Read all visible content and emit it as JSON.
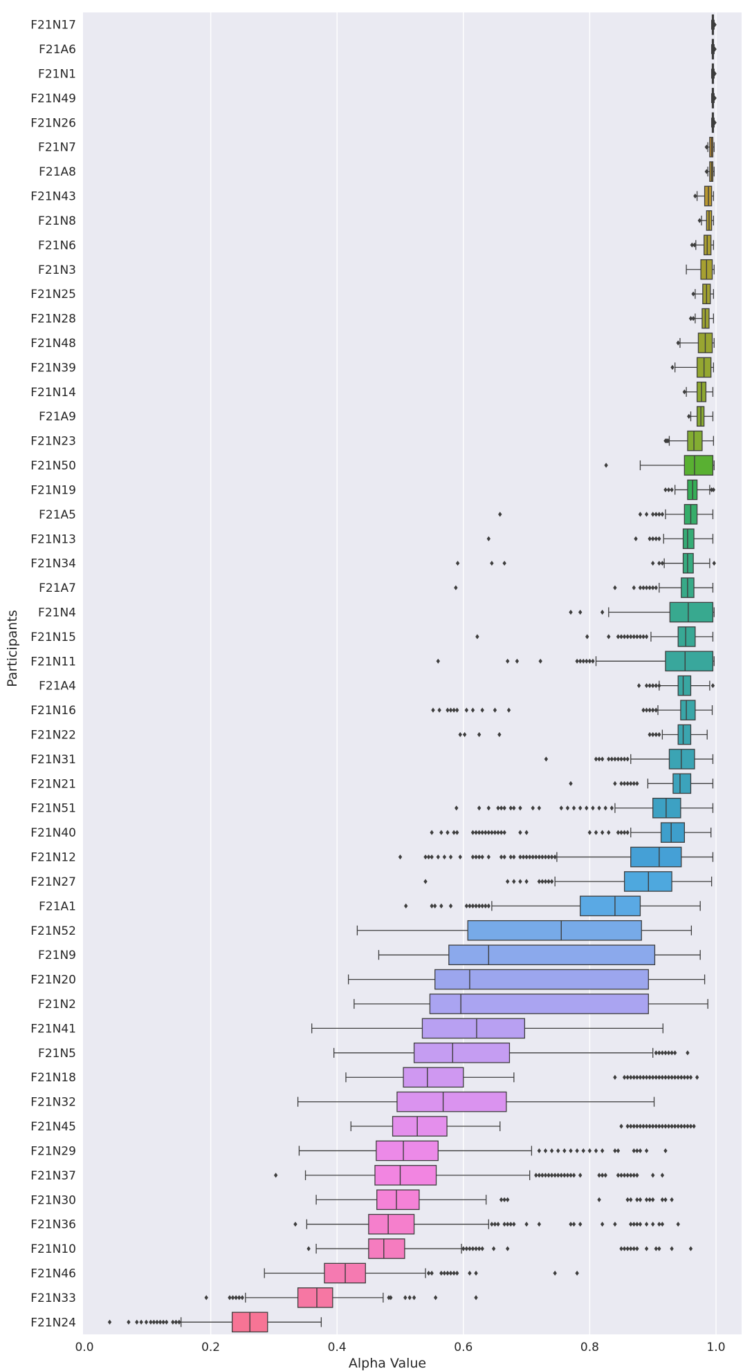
{
  "chart_data": {
    "type": "boxplot",
    "orientation": "horizontal",
    "xlabel": "Alpha Value",
    "ylabel": "Participants",
    "xlim": [
      0.0,
      1.05
    ],
    "xticks": [
      0.0,
      0.2,
      0.4,
      0.6,
      0.8,
      1.0
    ],
    "xtick_labels": [
      "0.0",
      "0.2",
      "0.4",
      "0.6",
      "0.8",
      "1.0"
    ],
    "grid": true,
    "background": "#eaeaf2",
    "colors": {
      "grid": "#ffffff",
      "box_edge": "#3d3d3d",
      "outlier": "#3d3d3d",
      "text": "#262626"
    },
    "series": [
      {
        "name": "F21N17",
        "color": "#f77189",
        "q1": 0.994,
        "median": 0.995,
        "q3": 0.996,
        "lo": 0.993,
        "hi": 0.997,
        "outliers": [
          0.998
        ]
      },
      {
        "name": "F21A6",
        "color": "#f7754f",
        "q1": 0.994,
        "median": 0.995,
        "q3": 0.996,
        "lo": 0.993,
        "hi": 0.997,
        "outliers": [
          0.998
        ]
      },
      {
        "name": "F21N1",
        "color": "#f37932",
        "q1": 0.994,
        "median": 0.995,
        "q3": 0.996,
        "lo": 0.993,
        "hi": 0.997,
        "outliers": [
          0.998
        ]
      },
      {
        "name": "F21N49",
        "color": "#e4832f",
        "q1": 0.994,
        "median": 0.995,
        "q3": 0.996,
        "lo": 0.993,
        "hi": 0.997,
        "outliers": [
          0.998
        ]
      },
      {
        "name": "F21N26",
        "color": "#d58c32",
        "q1": 0.994,
        "median": 0.995,
        "q3": 0.996,
        "lo": 0.993,
        "hi": 0.997,
        "outliers": [
          0.998
        ]
      },
      {
        "name": "F21N7",
        "color": "#c79432",
        "q1": 0.99,
        "median": 0.993,
        "q3": 0.995,
        "lo": 0.987,
        "hi": 0.997,
        "outliers": [
          0.985
        ]
      },
      {
        "name": "F21A8",
        "color": "#ba9832",
        "q1": 0.99,
        "median": 0.993,
        "q3": 0.995,
        "lo": 0.987,
        "hi": 0.997,
        "outliers": [
          0.985
        ]
      },
      {
        "name": "F21N43",
        "color": "#ba9832",
        "q1": 0.982,
        "median": 0.988,
        "q3": 0.993,
        "lo": 0.97,
        "hi": 0.996,
        "outliers": [
          0.967
        ]
      },
      {
        "name": "F21N8",
        "color": "#b29d32",
        "q1": 0.985,
        "median": 0.989,
        "q3": 0.993,
        "lo": 0.977,
        "hi": 0.996,
        "outliers": [
          0.974
        ]
      },
      {
        "name": "F21N6",
        "color": "#ab9f32",
        "q1": 0.981,
        "median": 0.986,
        "q3": 0.992,
        "lo": 0.968,
        "hi": 0.996,
        "outliers": [
          0.962,
          0.966
        ]
      },
      {
        "name": "F21N3",
        "color": "#a7a031",
        "q1": 0.976,
        "median": 0.985,
        "q3": 0.994,
        "lo": 0.953,
        "hi": 0.997,
        "outliers": []
      },
      {
        "name": "F21N25",
        "color": "#a2a231",
        "q1": 0.979,
        "median": 0.985,
        "q3": 0.991,
        "lo": 0.967,
        "hi": 0.996,
        "outliers": [
          0.964
        ]
      },
      {
        "name": "F21N28",
        "color": "#9ea431",
        "q1": 0.978,
        "median": 0.983,
        "q3": 0.989,
        "lo": 0.967,
        "hi": 0.996,
        "outliers": [
          0.96,
          0.964
        ]
      },
      {
        "name": "F21N48",
        "color": "#99a531",
        "q1": 0.972,
        "median": 0.983,
        "q3": 0.994,
        "lo": 0.943,
        "hi": 0.997,
        "outliers": [
          0.94
        ]
      },
      {
        "name": "F21N39",
        "color": "#94a731",
        "q1": 0.97,
        "median": 0.981,
        "q3": 0.992,
        "lo": 0.935,
        "hi": 0.996,
        "outliers": [
          0.931
        ]
      },
      {
        "name": "F21N14",
        "color": "#8fa931",
        "q1": 0.97,
        "median": 0.977,
        "q3": 0.984,
        "lo": 0.953,
        "hi": 0.995,
        "outliers": [
          0.95
        ]
      },
      {
        "name": "F21A9",
        "color": "#89aa31",
        "q1": 0.97,
        "median": 0.976,
        "q3": 0.981,
        "lo": 0.96,
        "hi": 0.995,
        "outliers": [
          0.957
        ]
      },
      {
        "name": "F21N23",
        "color": "#83ac32",
        "q1": 0.955,
        "median": 0.965,
        "q3": 0.978,
        "lo": 0.926,
        "hi": 0.996,
        "outliers": [
          0.92,
          0.922,
          0.924
        ]
      },
      {
        "name": "F21N50",
        "color": "#59b032",
        "q1": 0.95,
        "median": 0.966,
        "q3": 0.995,
        "lo": 0.88,
        "hi": 0.997,
        "outliers": [
          0.826
        ]
      },
      {
        "name": "F21N19",
        "color": "#35ae57",
        "q1": 0.955,
        "median": 0.963,
        "q3": 0.97,
        "lo": 0.935,
        "hi": 0.99,
        "outliers": [
          0.92,
          0.925,
          0.93,
          0.993,
          0.996
        ]
      },
      {
        "name": "F21A5",
        "color": "#36ad6a",
        "q1": 0.95,
        "median": 0.96,
        "q3": 0.97,
        "lo": 0.92,
        "hi": 0.995,
        "outliers": [
          0.658,
          0.88,
          0.89,
          0.9,
          0.905,
          0.91,
          0.915
        ]
      },
      {
        "name": "F21N13",
        "color": "#36ac76",
        "q1": 0.948,
        "median": 0.955,
        "q3": 0.965,
        "lo": 0.917,
        "hi": 0.995,
        "outliers": [
          0.64,
          0.873,
          0.895,
          0.9,
          0.905,
          0.91
        ]
      },
      {
        "name": "F21N34",
        "color": "#37ab80",
        "q1": 0.948,
        "median": 0.955,
        "q3": 0.964,
        "lo": 0.918,
        "hi": 0.99,
        "outliers": [
          0.591,
          0.645,
          0.665,
          0.9,
          0.91,
          0.915,
          0.997
        ]
      },
      {
        "name": "F21A7",
        "color": "#38aa88",
        "q1": 0.945,
        "median": 0.955,
        "q3": 0.965,
        "lo": 0.91,
        "hi": 0.995,
        "outliers": [
          0.588,
          0.84,
          0.87,
          0.88,
          0.885,
          0.89,
          0.895,
          0.9,
          0.905
        ]
      },
      {
        "name": "F21N4",
        "color": "#38a98f",
        "q1": 0.927,
        "median": 0.956,
        "q3": 0.995,
        "lo": 0.83,
        "hi": 0.997,
        "outliers": [
          0.77,
          0.785,
          0.82
        ]
      },
      {
        "name": "F21N15",
        "color": "#38a895",
        "q1": 0.94,
        "median": 0.952,
        "q3": 0.967,
        "lo": 0.897,
        "hi": 0.995,
        "outliers": [
          0.622,
          0.796,
          0.83,
          0.845,
          0.85,
          0.855,
          0.86,
          0.865,
          0.87,
          0.875,
          0.88,
          0.885,
          0.89
        ]
      },
      {
        "name": "F21N11",
        "color": "#39a79c",
        "q1": 0.92,
        "median": 0.951,
        "q3": 0.995,
        "lo": 0.81,
        "hi": 0.997,
        "outliers": [
          0.56,
          0.67,
          0.685,
          0.722,
          0.78,
          0.785,
          0.79,
          0.795,
          0.8,
          0.805
        ]
      },
      {
        "name": "F21A4",
        "color": "#39a7a2",
        "q1": 0.94,
        "median": 0.948,
        "q3": 0.96,
        "lo": 0.91,
        "hi": 0.99,
        "outliers": [
          0.878,
          0.89,
          0.895,
          0.9,
          0.905,
          0.91,
          0.995
        ]
      },
      {
        "name": "F21N16",
        "color": "#3aa6a8",
        "q1": 0.944,
        "median": 0.953,
        "q3": 0.967,
        "lo": 0.908,
        "hi": 0.994,
        "outliers": [
          0.552,
          0.562,
          0.575,
          0.58,
          0.585,
          0.59,
          0.605,
          0.615,
          0.63,
          0.65,
          0.672,
          0.885,
          0.89,
          0.895,
          0.9,
          0.905
        ]
      },
      {
        "name": "F21N22",
        "color": "#3ba5af",
        "q1": 0.94,
        "median": 0.948,
        "q3": 0.96,
        "lo": 0.915,
        "hi": 0.986,
        "outliers": [
          0.595,
          0.602,
          0.625,
          0.657,
          0.895,
          0.9,
          0.905,
          0.91
        ]
      },
      {
        "name": "F21N31",
        "color": "#3ba4b4",
        "q1": 0.926,
        "median": 0.945,
        "q3": 0.966,
        "lo": 0.865,
        "hi": 0.995,
        "outliers": [
          0.731,
          0.81,
          0.815,
          0.82,
          0.83,
          0.835,
          0.84,
          0.845,
          0.85,
          0.855,
          0.86
        ]
      },
      {
        "name": "F21N21",
        "color": "#3ca3bc",
        "q1": 0.932,
        "median": 0.943,
        "q3": 0.96,
        "lo": 0.892,
        "hi": 0.995,
        "outliers": [
          0.77,
          0.84,
          0.85,
          0.855,
          0.86,
          0.865,
          0.87,
          0.875
        ]
      },
      {
        "name": "F21N51",
        "color": "#3da1c3",
        "q1": 0.9,
        "median": 0.921,
        "q3": 0.944,
        "lo": 0.84,
        "hi": 0.995,
        "outliers": [
          0.589,
          0.625,
          0.64,
          0.655,
          0.66,
          0.665,
          0.675,
          0.68,
          0.69,
          0.71,
          0.72,
          0.755,
          0.765,
          0.775,
          0.785,
          0.795,
          0.805,
          0.815,
          0.825,
          0.835
        ]
      },
      {
        "name": "F21N40",
        "color": "#3e9fcc",
        "q1": 0.913,
        "median": 0.929,
        "q3": 0.95,
        "lo": 0.865,
        "hi": 0.992,
        "outliers": [
          0.55,
          0.565,
          0.575,
          0.585,
          0.59,
          0.615,
          0.62,
          0.625,
          0.63,
          0.635,
          0.64,
          0.645,
          0.65,
          0.655,
          0.66,
          0.665,
          0.69,
          0.7,
          0.8,
          0.81,
          0.82,
          0.83,
          0.845,
          0.85,
          0.855,
          0.86
        ]
      },
      {
        "name": "F21N12",
        "color": "#45a0d6",
        "q1": 0.865,
        "median": 0.91,
        "q3": 0.945,
        "lo": 0.748,
        "hi": 0.995,
        "outliers": [
          0.5,
          0.54,
          0.545,
          0.55,
          0.56,
          0.57,
          0.58,
          0.595,
          0.615,
          0.62,
          0.625,
          0.63,
          0.64,
          0.66,
          0.665,
          0.675,
          0.68,
          0.69,
          0.695,
          0.7,
          0.705,
          0.71,
          0.715,
          0.72,
          0.725,
          0.73,
          0.735,
          0.74,
          0.745
        ]
      },
      {
        "name": "F21N27",
        "color": "#4ea8de",
        "q1": 0.855,
        "median": 0.893,
        "q3": 0.93,
        "lo": 0.745,
        "hi": 0.993,
        "outliers": [
          0.54,
          0.67,
          0.68,
          0.69,
          0.7,
          0.72,
          0.725,
          0.73,
          0.735,
          0.74
        ]
      },
      {
        "name": "F21A1",
        "color": "#5aa9e4",
        "q1": 0.785,
        "median": 0.84,
        "q3": 0.88,
        "lo": 0.645,
        "hi": 0.975,
        "outliers": [
          0.509,
          0.55,
          0.555,
          0.565,
          0.58,
          0.605,
          0.61,
          0.615,
          0.62,
          0.625,
          0.63,
          0.635,
          0.64
        ]
      },
      {
        "name": "F21N52",
        "color": "#77aae8",
        "q1": 0.607,
        "median": 0.755,
        "q3": 0.882,
        "lo": 0.432,
        "hi": 0.961,
        "outliers": []
      },
      {
        "name": "F21N9",
        "color": "#8ba9ec",
        "q1": 0.577,
        "median": 0.64,
        "q3": 0.903,
        "lo": 0.466,
        "hi": 0.975,
        "outliers": []
      },
      {
        "name": "F21N20",
        "color": "#9ca6ee",
        "q1": 0.555,
        "median": 0.61,
        "q3": 0.893,
        "lo": 0.418,
        "hi": 0.982,
        "outliers": []
      },
      {
        "name": "F21N2",
        "color": "#aaa4f1",
        "q1": 0.547,
        "median": 0.596,
        "q3": 0.893,
        "lo": 0.427,
        "hi": 0.987,
        "outliers": []
      },
      {
        "name": "F21N41",
        "color": "#b8a0f2",
        "q1": 0.535,
        "median": 0.621,
        "q3": 0.697,
        "lo": 0.36,
        "hi": 0.916,
        "outliers": []
      },
      {
        "name": "F21N5",
        "color": "#c59df2",
        "q1": 0.522,
        "median": 0.583,
        "q3": 0.673,
        "lo": 0.395,
        "hi": 0.9,
        "outliers": [
          0.905,
          0.91,
          0.915,
          0.92,
          0.925,
          0.93,
          0.935,
          0.955
        ]
      },
      {
        "name": "F21N18",
        "color": "#cf98f1",
        "q1": 0.505,
        "median": 0.543,
        "q3": 0.6,
        "lo": 0.414,
        "hi": 0.68,
        "outliers": [
          0.84,
          0.855,
          0.86,
          0.865,
          0.87,
          0.875,
          0.88,
          0.885,
          0.89,
          0.895,
          0.9,
          0.905,
          0.91,
          0.915,
          0.92,
          0.925,
          0.93,
          0.935,
          0.94,
          0.945,
          0.95,
          0.955,
          0.96,
          0.97
        ]
      },
      {
        "name": "F21N32",
        "color": "#da93ef",
        "q1": 0.495,
        "median": 0.568,
        "q3": 0.668,
        "lo": 0.338,
        "hi": 0.902,
        "outliers": []
      },
      {
        "name": "F21N45",
        "color": "#e48fec",
        "q1": 0.488,
        "median": 0.527,
        "q3": 0.574,
        "lo": 0.422,
        "hi": 0.658,
        "outliers": [
          0.85,
          0.86,
          0.865,
          0.87,
          0.875,
          0.88,
          0.885,
          0.89,
          0.895,
          0.9,
          0.905,
          0.91,
          0.915,
          0.92,
          0.925,
          0.93,
          0.935,
          0.94,
          0.945,
          0.95,
          0.955,
          0.96,
          0.965
        ]
      },
      {
        "name": "F21N29",
        "color": "#ec8ae8",
        "q1": 0.462,
        "median": 0.505,
        "q3": 0.56,
        "lo": 0.34,
        "hi": 0.708,
        "outliers": [
          0.72,
          0.73,
          0.74,
          0.75,
          0.76,
          0.77,
          0.78,
          0.79,
          0.8,
          0.81,
          0.82,
          0.84,
          0.845,
          0.87,
          0.875,
          0.88,
          0.89,
          0.92
        ]
      },
      {
        "name": "F21N37",
        "color": "#f285e1",
        "q1": 0.46,
        "median": 0.5,
        "q3": 0.557,
        "lo": 0.35,
        "hi": 0.705,
        "outliers": [
          0.303,
          0.715,
          0.72,
          0.725,
          0.73,
          0.735,
          0.74,
          0.745,
          0.75,
          0.755,
          0.76,
          0.765,
          0.77,
          0.775,
          0.785,
          0.815,
          0.82,
          0.825,
          0.845,
          0.85,
          0.855,
          0.86,
          0.865,
          0.87,
          0.875,
          0.9,
          0.915
        ]
      },
      {
        "name": "F21N30",
        "color": "#f582d7",
        "q1": 0.463,
        "median": 0.494,
        "q3": 0.53,
        "lo": 0.367,
        "hi": 0.636,
        "outliers": [
          0.66,
          0.665,
          0.67,
          0.815,
          0.86,
          0.865,
          0.875,
          0.88,
          0.89,
          0.895,
          0.9,
          0.915,
          0.92,
          0.93
        ]
      },
      {
        "name": "F21N36",
        "color": "#f57fcc",
        "q1": 0.45,
        "median": 0.481,
        "q3": 0.522,
        "lo": 0.352,
        "hi": 0.64,
        "outliers": [
          0.334,
          0.645,
          0.65,
          0.655,
          0.665,
          0.67,
          0.675,
          0.68,
          0.7,
          0.72,
          0.77,
          0.775,
          0.785,
          0.82,
          0.84,
          0.865,
          0.87,
          0.875,
          0.88,
          0.89,
          0.9,
          0.91,
          0.915,
          0.94
        ]
      },
      {
        "name": "F21N10",
        "color": "#f57cbf",
        "q1": 0.45,
        "median": 0.474,
        "q3": 0.507,
        "lo": 0.367,
        "hi": 0.597,
        "outliers": [
          0.355,
          0.6,
          0.605,
          0.61,
          0.615,
          0.62,
          0.625,
          0.63,
          0.648,
          0.67,
          0.85,
          0.855,
          0.86,
          0.865,
          0.87,
          0.875,
          0.89,
          0.905,
          0.91,
          0.93,
          0.96
        ]
      },
      {
        "name": "F21N46",
        "color": "#f57ab1",
        "q1": 0.38,
        "median": 0.413,
        "q3": 0.445,
        "lo": 0.285,
        "hi": 0.54,
        "outliers": [
          0.545,
          0.55,
          0.565,
          0.57,
          0.575,
          0.58,
          0.585,
          0.59,
          0.61,
          0.62,
          0.745,
          0.78
        ]
      },
      {
        "name": "F21N33",
        "color": "#f677a3",
        "q1": 0.338,
        "median": 0.368,
        "q3": 0.393,
        "lo": 0.255,
        "hi": 0.473,
        "outliers": [
          0.193,
          0.23,
          0.235,
          0.24,
          0.245,
          0.25,
          0.482,
          0.485,
          0.508,
          0.515,
          0.522,
          0.556,
          0.62
        ]
      },
      {
        "name": "F21N24",
        "color": "#f77495",
        "q1": 0.234,
        "median": 0.262,
        "q3": 0.29,
        "lo": 0.153,
        "hi": 0.375,
        "outliers": [
          0.04,
          0.07,
          0.083,
          0.09,
          0.098,
          0.105,
          0.11,
          0.115,
          0.12,
          0.125,
          0.13,
          0.14,
          0.145,
          0.15
        ]
      }
    ]
  }
}
